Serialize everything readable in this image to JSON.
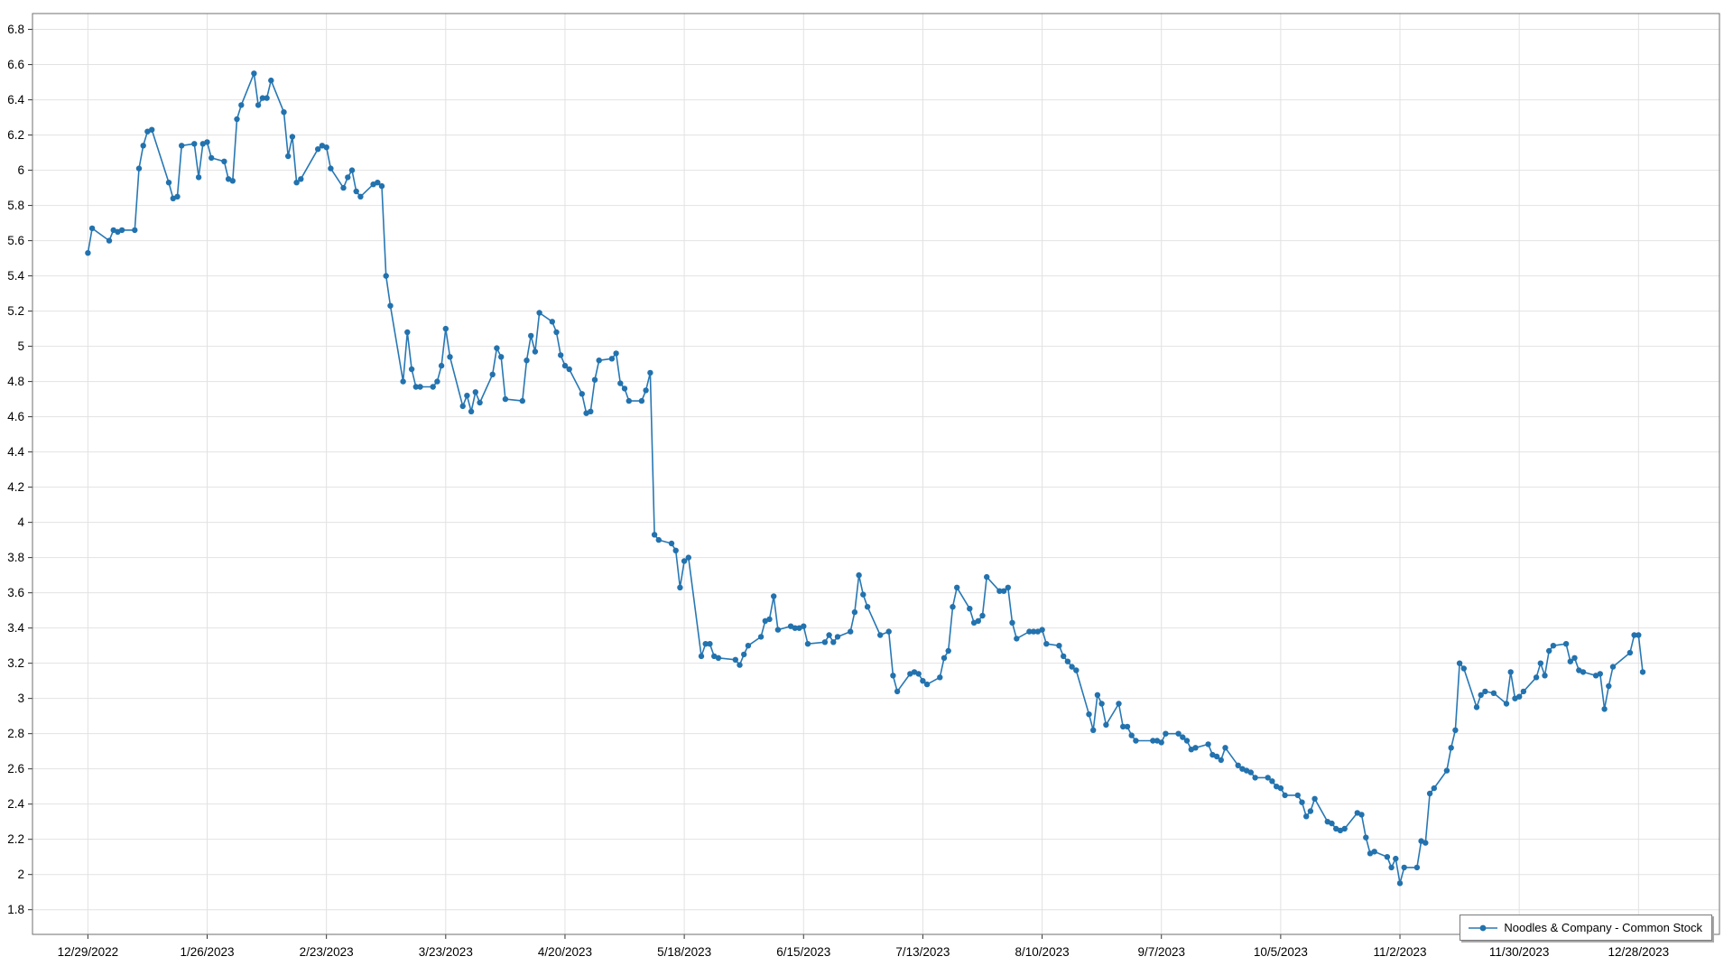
{
  "chart_data": {
    "type": "line",
    "title": "",
    "xlabel": "",
    "ylabel": "",
    "grid": true,
    "marker": "circle",
    "legend_position": "bottom-right",
    "background": "#ffffff",
    "colors": {
      "line": "#2878b4",
      "marker": "#2272ae",
      "gridline": "#e2e2e2",
      "border": "#6f6f6f",
      "tick": "#333333",
      "text": "#000000"
    },
    "ylim": [
      1.66,
      6.89
    ],
    "y_ticks": [
      6.8,
      6.6,
      6.4,
      6.2,
      6.0,
      5.8,
      5.6,
      5.4,
      5.2,
      5.0,
      4.8,
      4.6,
      4.4,
      4.2,
      4.0,
      3.8,
      3.6,
      3.4,
      3.2,
      3.0,
      2.8,
      2.6,
      2.4,
      2.2,
      2.0,
      1.8
    ],
    "x_axis_start": "2022-12-16",
    "x_axis_end": "2024-01-16",
    "x_tick_labels": [
      "12/29/2022",
      "1/26/2023",
      "2/23/2023",
      "3/23/2023",
      "4/20/2023",
      "5/18/2023",
      "6/15/2023",
      "7/13/2023",
      "8/10/2023",
      "9/7/2023",
      "10/5/2023",
      "11/2/2023",
      "11/30/2023",
      "12/28/2023"
    ],
    "series": [
      {
        "name": "Noodles & Company - Common Stock",
        "dates": [
          "2022-12-29",
          "2022-12-30",
          "2023-01-03",
          "2023-01-04",
          "2023-01-05",
          "2023-01-06",
          "2023-01-09",
          "2023-01-10",
          "2023-01-11",
          "2023-01-12",
          "2023-01-13",
          "2023-01-17",
          "2023-01-18",
          "2023-01-19",
          "2023-01-20",
          "2023-01-23",
          "2023-01-24",
          "2023-01-25",
          "2023-01-26",
          "2023-01-27",
          "2023-01-30",
          "2023-01-31",
          "2023-02-01",
          "2023-02-02",
          "2023-02-03",
          "2023-02-06",
          "2023-02-07",
          "2023-02-08",
          "2023-02-09",
          "2023-02-10",
          "2023-02-13",
          "2023-02-14",
          "2023-02-15",
          "2023-02-16",
          "2023-02-17",
          "2023-02-21",
          "2023-02-22",
          "2023-02-23",
          "2023-02-24",
          "2023-02-27",
          "2023-02-28",
          "2023-03-01",
          "2023-03-02",
          "2023-03-03",
          "2023-03-06",
          "2023-03-07",
          "2023-03-08",
          "2023-03-09",
          "2023-03-10",
          "2023-03-13",
          "2023-03-14",
          "2023-03-15",
          "2023-03-16",
          "2023-03-17",
          "2023-03-20",
          "2023-03-21",
          "2023-03-22",
          "2023-03-23",
          "2023-03-24",
          "2023-03-27",
          "2023-03-28",
          "2023-03-29",
          "2023-03-30",
          "2023-03-31",
          "2023-04-03",
          "2023-04-04",
          "2023-04-05",
          "2023-04-06",
          "2023-04-10",
          "2023-04-11",
          "2023-04-12",
          "2023-04-13",
          "2023-04-14",
          "2023-04-17",
          "2023-04-18",
          "2023-04-19",
          "2023-04-20",
          "2023-04-21",
          "2023-04-24",
          "2023-04-25",
          "2023-04-26",
          "2023-04-27",
          "2023-04-28",
          "2023-05-01",
          "2023-05-02",
          "2023-05-03",
          "2023-05-04",
          "2023-05-05",
          "2023-05-08",
          "2023-05-09",
          "2023-05-10",
          "2023-05-11",
          "2023-05-12",
          "2023-05-15",
          "2023-05-16",
          "2023-05-17",
          "2023-05-18",
          "2023-05-19",
          "2023-05-22",
          "2023-05-23",
          "2023-05-24",
          "2023-05-25",
          "2023-05-26",
          "2023-05-30",
          "2023-05-31",
          "2023-06-01",
          "2023-06-02",
          "2023-06-05",
          "2023-06-06",
          "2023-06-07",
          "2023-06-08",
          "2023-06-09",
          "2023-06-12",
          "2023-06-13",
          "2023-06-14",
          "2023-06-15",
          "2023-06-16",
          "2023-06-20",
          "2023-06-21",
          "2023-06-22",
          "2023-06-23",
          "2023-06-26",
          "2023-06-27",
          "2023-06-28",
          "2023-06-29",
          "2023-06-30",
          "2023-07-03",
          "2023-07-05",
          "2023-07-06",
          "2023-07-07",
          "2023-07-10",
          "2023-07-11",
          "2023-07-12",
          "2023-07-13",
          "2023-07-14",
          "2023-07-17",
          "2023-07-18",
          "2023-07-19",
          "2023-07-20",
          "2023-07-21",
          "2023-07-24",
          "2023-07-25",
          "2023-07-26",
          "2023-07-27",
          "2023-07-28",
          "2023-07-31",
          "2023-08-01",
          "2023-08-02",
          "2023-08-03",
          "2023-08-04",
          "2023-08-07",
          "2023-08-08",
          "2023-08-09",
          "2023-08-10",
          "2023-08-11",
          "2023-08-14",
          "2023-08-15",
          "2023-08-16",
          "2023-08-17",
          "2023-08-18",
          "2023-08-21",
          "2023-08-22",
          "2023-08-23",
          "2023-08-24",
          "2023-08-25",
          "2023-08-28",
          "2023-08-29",
          "2023-08-30",
          "2023-08-31",
          "2023-09-01",
          "2023-09-05",
          "2023-09-06",
          "2023-09-07",
          "2023-09-08",
          "2023-09-11",
          "2023-09-12",
          "2023-09-13",
          "2023-09-14",
          "2023-09-15",
          "2023-09-18",
          "2023-09-19",
          "2023-09-20",
          "2023-09-21",
          "2023-09-22",
          "2023-09-25",
          "2023-09-26",
          "2023-09-27",
          "2023-09-28",
          "2023-09-29",
          "2023-10-02",
          "2023-10-03",
          "2023-10-04",
          "2023-10-05",
          "2023-10-06",
          "2023-10-09",
          "2023-10-10",
          "2023-10-11",
          "2023-10-12",
          "2023-10-13",
          "2023-10-16",
          "2023-10-17",
          "2023-10-18",
          "2023-10-19",
          "2023-10-20",
          "2023-10-23",
          "2023-10-24",
          "2023-10-25",
          "2023-10-26",
          "2023-10-27",
          "2023-10-30",
          "2023-10-31",
          "2023-11-01",
          "2023-11-02",
          "2023-11-03",
          "2023-11-06",
          "2023-11-07",
          "2023-11-08",
          "2023-11-09",
          "2023-11-10",
          "2023-11-13",
          "2023-11-14",
          "2023-11-15",
          "2023-11-16",
          "2023-11-17",
          "2023-11-20",
          "2023-11-21",
          "2023-11-22",
          "2023-11-24",
          "2023-11-27",
          "2023-11-28",
          "2023-11-29",
          "2023-11-30",
          "2023-12-01",
          "2023-12-04",
          "2023-12-05",
          "2023-12-06",
          "2023-12-07",
          "2023-12-08",
          "2023-12-11",
          "2023-12-12",
          "2023-12-13",
          "2023-12-14",
          "2023-12-15",
          "2023-12-18",
          "2023-12-19",
          "2023-12-20",
          "2023-12-21",
          "2023-12-22",
          "2023-12-26",
          "2023-12-27",
          "2023-12-28",
          "2023-12-29"
        ],
        "values": [
          5.53,
          5.67,
          5.6,
          5.66,
          5.65,
          5.66,
          5.66,
          6.01,
          6.14,
          6.22,
          6.23,
          5.93,
          5.84,
          5.85,
          6.14,
          6.15,
          5.96,
          6.15,
          6.16,
          6.07,
          6.05,
          5.95,
          5.94,
          6.29,
          6.37,
          6.55,
          6.37,
          6.41,
          6.41,
          6.51,
          6.33,
          6.08,
          6.19,
          5.93,
          5.95,
          6.12,
          6.14,
          6.13,
          6.01,
          5.9,
          5.96,
          6.0,
          5.88,
          5.85,
          5.92,
          5.93,
          5.91,
          5.4,
          5.23,
          4.8,
          5.08,
          4.87,
          4.77,
          4.77,
          4.77,
          4.8,
          4.89,
          5.1,
          4.94,
          4.66,
          4.72,
          4.63,
          4.74,
          4.68,
          4.84,
          4.99,
          4.94,
          4.7,
          4.69,
          4.92,
          5.06,
          4.97,
          5.19,
          5.14,
          5.08,
          4.95,
          4.89,
          4.87,
          4.73,
          4.62,
          4.63,
          4.81,
          4.92,
          4.93,
          4.96,
          4.79,
          4.76,
          4.69,
          4.69,
          4.75,
          4.85,
          3.93,
          3.9,
          3.88,
          3.84,
          3.63,
          3.78,
          3.8,
          3.24,
          3.31,
          3.31,
          3.24,
          3.23,
          3.22,
          3.19,
          3.25,
          3.3,
          3.35,
          3.44,
          3.45,
          3.58,
          3.39,
          3.41,
          3.4,
          3.4,
          3.41,
          3.31,
          3.32,
          3.36,
          3.32,
          3.35,
          3.38,
          3.49,
          3.7,
          3.59,
          3.52,
          3.36,
          3.38,
          3.13,
          3.04,
          3.14,
          3.15,
          3.14,
          3.1,
          3.08,
          3.12,
          3.23,
          3.27,
          3.52,
          3.63,
          3.51,
          3.43,
          3.44,
          3.47,
          3.69,
          3.61,
          3.61,
          3.63,
          3.43,
          3.34,
          3.38,
          3.38,
          3.38,
          3.39,
          3.31,
          3.3,
          3.24,
          3.21,
          3.18,
          3.16,
          2.91,
          2.82,
          3.02,
          2.97,
          2.85,
          2.97,
          2.84,
          2.84,
          2.79,
          2.76,
          2.76,
          2.76,
          2.75,
          2.8,
          2.8,
          2.78,
          2.76,
          2.71,
          2.72,
          2.74,
          2.68,
          2.67,
          2.65,
          2.72,
          2.62,
          2.6,
          2.59,
          2.58,
          2.55,
          2.55,
          2.53,
          2.5,
          2.49,
          2.45,
          2.45,
          2.41,
          2.33,
          2.36,
          2.43,
          2.3,
          2.29,
          2.26,
          2.25,
          2.26,
          2.35,
          2.34,
          2.21,
          2.12,
          2.13,
          2.1,
          2.04,
          2.09,
          1.95,
          2.04,
          2.04,
          2.19,
          2.18,
          2.46,
          2.49,
          2.59,
          2.72,
          2.82,
          3.2,
          3.17,
          2.95,
          3.02,
          3.04,
          3.03,
          2.97,
          3.15,
          3.0,
          3.01,
          3.04,
          3.12,
          3.2,
          3.13,
          3.27,
          3.3,
          3.31,
          3.21,
          3.23,
          3.16,
          3.15,
          3.13,
          3.14,
          2.94,
          3.07,
          3.18,
          3.26,
          3.36,
          3.36,
          3.15
        ]
      }
    ]
  },
  "legend": {
    "label": "Noodles & Company - Common Stock"
  }
}
